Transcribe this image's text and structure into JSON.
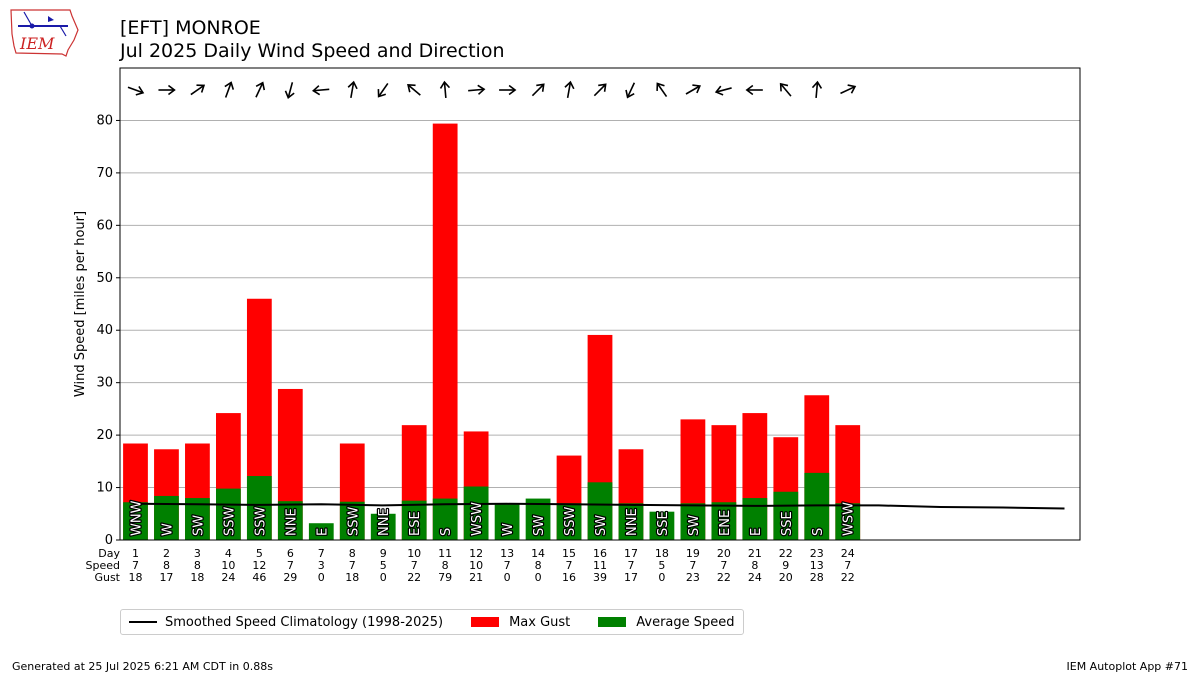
{
  "header": {
    "title_line1": "[EFT] MONROE",
    "title_line2": "Jul 2025 Daily Wind Speed and Direction",
    "logo_text": "IEM"
  },
  "footer": {
    "generated": "Generated at 25 Jul 2025 6:21 AM CDT in 0.88s",
    "app": "IEM Autoplot App #71"
  },
  "legend": {
    "climatology": "Smoothed Speed Climatology (1998-2025)",
    "gust": "Max Gust",
    "average": "Average Speed"
  },
  "colors": {
    "gust": "#ff0000",
    "average": "#008000",
    "climatology": "#000000",
    "grid": "#b0b0b0"
  },
  "chart_data": {
    "type": "bar",
    "ylabel": "Wind Speed [miles per hour]",
    "ylim": [
      0,
      90
    ],
    "yticks": [
      0,
      10,
      20,
      30,
      40,
      50,
      60,
      70,
      80
    ],
    "xlim": [
      0.5,
      31.5
    ],
    "grid": "horizontal",
    "legend_position": "bottom",
    "row_labels": [
      "Day",
      "Speed",
      "Gust"
    ],
    "days": [
      1,
      2,
      3,
      4,
      5,
      6,
      7,
      8,
      9,
      10,
      11,
      12,
      13,
      14,
      15,
      16,
      17,
      18,
      19,
      20,
      21,
      22,
      23,
      24
    ],
    "speed_labels": [
      7,
      8,
      8,
      10,
      12,
      7,
      3,
      7,
      5,
      7,
      8,
      10,
      7,
      8,
      7,
      11,
      7,
      5,
      7,
      7,
      8,
      9,
      13,
      7
    ],
    "gust_labels": [
      18,
      17,
      18,
      24,
      46,
      29,
      0,
      18,
      0,
      22,
      79,
      21,
      0,
      0,
      16,
      39,
      17,
      0,
      23,
      22,
      24,
      20,
      28,
      22
    ],
    "series": [
      {
        "name": "Max Gust",
        "values": [
          18.4,
          17.3,
          18.4,
          24.2,
          46.0,
          28.8,
          0,
          18.4,
          0,
          21.9,
          79.4,
          20.7,
          0,
          0,
          16.1,
          39.1,
          17.3,
          0,
          23.0,
          21.9,
          24.2,
          19.6,
          27.6,
          21.9
        ]
      },
      {
        "name": "Average Speed",
        "values": [
          7.2,
          8.4,
          8.0,
          9.8,
          12.2,
          7.4,
          3.2,
          7.3,
          5.0,
          7.5,
          7.9,
          10.2,
          7.0,
          7.9,
          7.0,
          11.0,
          7.0,
          5.4,
          7.0,
          7.2,
          8.0,
          9.2,
          12.8,
          7.0
        ]
      },
      {
        "name": "Smoothed Speed Climatology (1998-2025)",
        "x": [
          1,
          3,
          5,
          7,
          9,
          11,
          13,
          15,
          17,
          19,
          21,
          23,
          25,
          27,
          29,
          31
        ],
        "values": [
          6.9,
          6.8,
          6.7,
          6.8,
          6.6,
          6.8,
          6.9,
          6.8,
          6.7,
          6.6,
          6.5,
          6.6,
          6.6,
          6.3,
          6.2,
          6.0
        ]
      }
    ],
    "direction_labels": [
      "WNW",
      "W",
      "SW",
      "SSW",
      "SSW",
      "NNE",
      "E",
      "SSW",
      "NNE",
      "ESE",
      "S",
      "WSW",
      "W",
      "SW",
      "SSW",
      "SW",
      "NNE",
      "SSE",
      "SW",
      "ENE",
      "E",
      "SSE",
      "S",
      "WSW"
    ],
    "arrow_icons": [
      "arrow-down-right-icon",
      "arrow-right-icon",
      "arrow-up-right-icon",
      "arrow-up-icon",
      "arrow-up-right-icon",
      "arrow-down-icon",
      "arrow-left-icon",
      "arrow-up-icon",
      "arrow-down-left-icon",
      "arrow-up-left-icon",
      "arrow-up-icon",
      "arrow-right-icon",
      "arrow-right-icon",
      "arrow-up-right-icon",
      "arrow-up-icon",
      "arrow-up-right-icon",
      "arrow-down-icon",
      "arrow-up-left-icon",
      "arrow-up-right-icon",
      "arrow-left-icon",
      "arrow-left-icon",
      "arrow-up-left-icon",
      "arrow-up-icon",
      "arrow-up-right-icon"
    ],
    "arrow_angles_deg": [
      20,
      0,
      -35,
      -70,
      -65,
      105,
      175,
      -80,
      125,
      -140,
      -95,
      -5,
      0,
      -45,
      -80,
      -45,
      115,
      -125,
      -30,
      165,
      180,
      -130,
      -85,
      -25
    ]
  }
}
